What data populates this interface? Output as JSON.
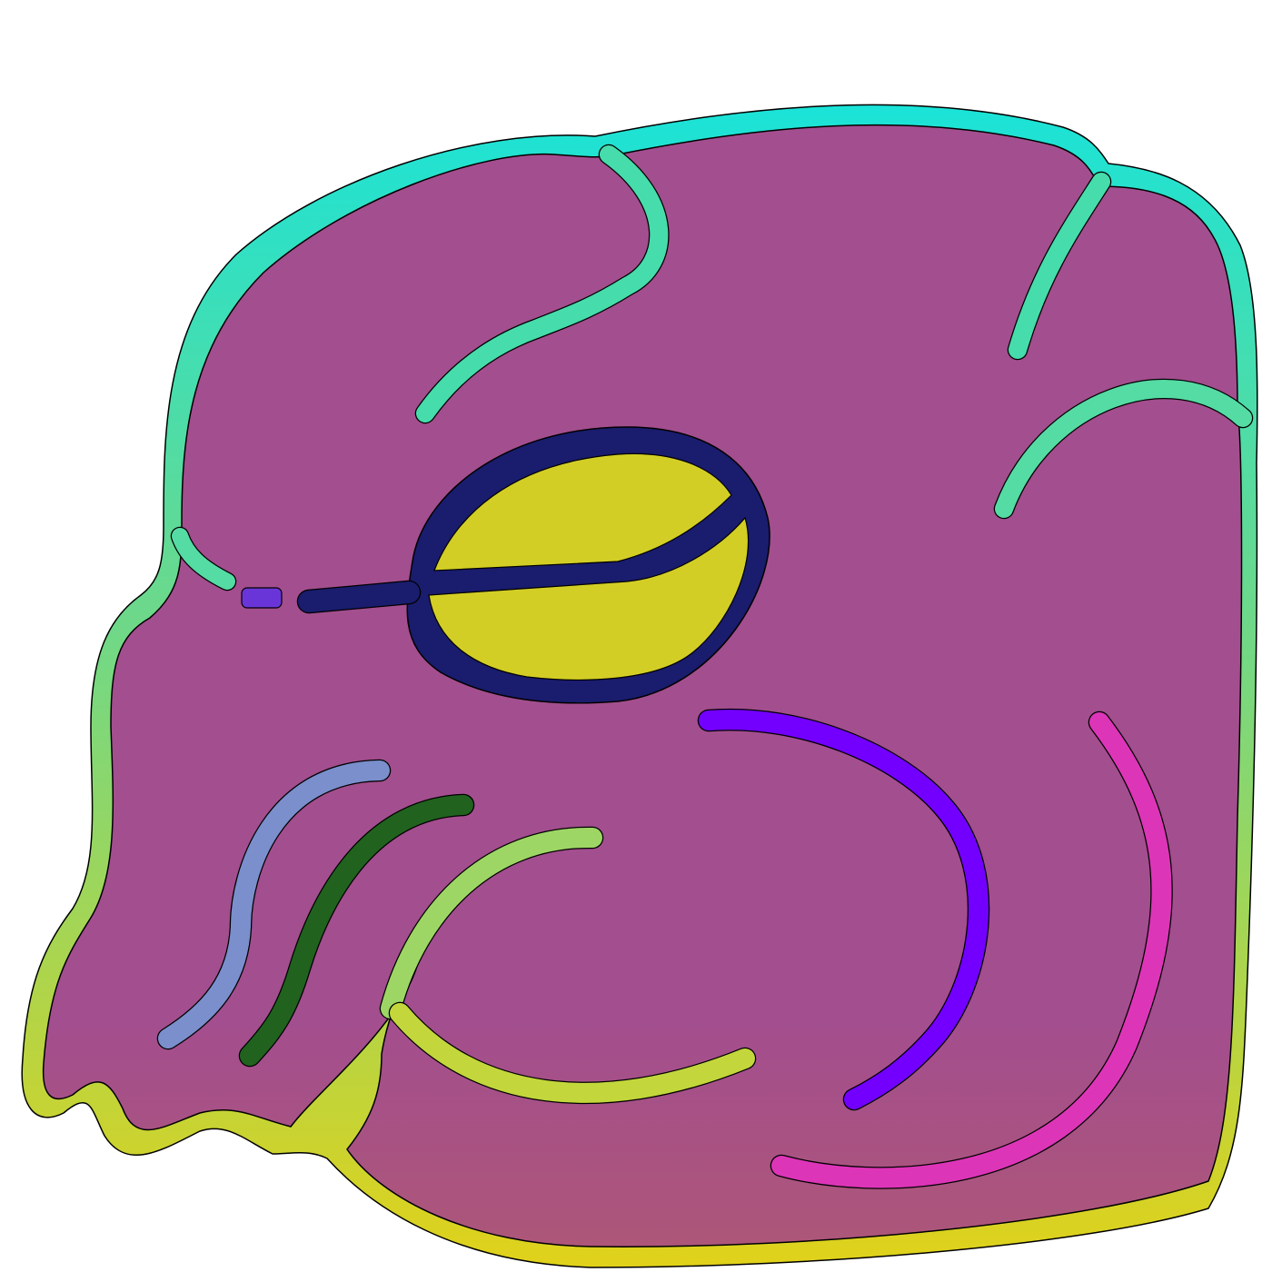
{
  "figure": {
    "subject": "abstract-creature-head-drawing",
    "colors": {
      "background": "#ffffff",
      "body_fill": "#a34e8e",
      "body_fill_bottom": "#ad5679",
      "outline_top": "#1ae3d8",
      "outline_mid": "#6fd888",
      "outline_bottom": "#e1d21a",
      "eye_ring": "#1a1c6d",
      "eye_fill": "#d3ce25",
      "dash_violet": "#6a35d8",
      "stroke_purple": "#7300ff",
      "stroke_pink": "#dd35b8",
      "stroke_periwinkle": "#7a8fcc",
      "stroke_green": "#21621f",
      "stroke_light_green": "#9ed665",
      "stroke_yellow_green": "#c3d63c",
      "stroke_teal": "#46dcab",
      "stroke_mint": "#55dba4",
      "edge_ink": "#000000"
    }
  }
}
